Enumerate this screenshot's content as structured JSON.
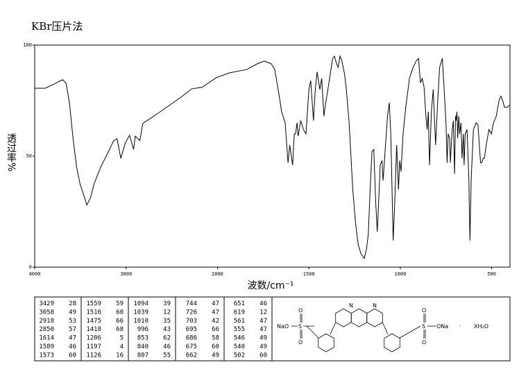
{
  "chart_data": {
    "type": "line",
    "title": "KBr压片法",
    "xlabel": "波数/cm⁻¹",
    "ylabel": "透过率%",
    "xlim": [
      4000,
      400
    ],
    "xticks": [
      4000,
      3000,
      2000,
      1500,
      1000,
      500
    ],
    "ylim": [
      0,
      100
    ],
    "yticks": [
      0,
      50,
      100
    ],
    "color": "#000000",
    "x": [
      4000,
      3885,
      3771,
      3695,
      3656,
      3618,
      3580,
      3542,
      3504,
      3466,
      3429,
      3389,
      3351,
      3275,
      3198,
      3137,
      3099,
      3058,
      3008,
      2962,
      2918,
      2900,
      2850,
      2817,
      2626,
      2397,
      2282,
      2168,
      2015,
      1935,
      1840,
      1782,
      1744,
      1706,
      1687,
      1668,
      1649,
      1630,
      1614,
      1605,
      1589,
      1580,
      1573,
      1565,
      1559,
      1545,
      1530,
      1516,
      1500,
      1490,
      1475,
      1465,
      1455,
      1440,
      1430,
      1418,
      1410,
      1400,
      1385,
      1370,
      1360,
      1350,
      1340,
      1330,
      1320,
      1305,
      1295,
      1280,
      1270,
      1260,
      1245,
      1230,
      1215,
      1206,
      1197,
      1185,
      1175,
      1165,
      1155,
      1145,
      1135,
      1126,
      1118,
      1110,
      1100,
      1094,
      1085,
      1070,
      1060,
      1052,
      1039,
      1030,
      1020,
      1010,
      1003,
      996,
      985,
      970,
      950,
      930,
      912,
      900,
      890,
      880,
      870,
      860,
      853,
      847,
      840,
      830,
      820,
      807,
      795,
      785,
      770,
      760,
      750,
      744,
      738,
      730,
      726,
      718,
      710,
      703,
      698,
      695,
      690,
      686,
      680,
      675,
      668,
      662,
      655,
      651,
      645,
      635,
      625,
      619,
      612,
      600,
      585,
      575,
      561,
      555,
      546,
      540,
      530,
      515,
      502,
      490,
      475,
      460,
      450,
      440,
      430,
      415,
      400
    ],
    "values": [
      80.6,
      80.6,
      82.8,
      84.4,
      82.8,
      73.4,
      57.8,
      45.3,
      37.5,
      32.8,
      28,
      31.3,
      37.5,
      45.3,
      51.6,
      56.9,
      57.8,
      49,
      56,
      59.4,
      53,
      59,
      57,
      64.7,
      70,
      76.6,
      80.3,
      81,
      85.3,
      87.5,
      89,
      91.6,
      92.8,
      91.6,
      89,
      80,
      70,
      65,
      47,
      55,
      46,
      60,
      60,
      65,
      59,
      66,
      62,
      60,
      80,
      84,
      66,
      80,
      88,
      80,
      85,
      68,
      73,
      78,
      86,
      94,
      95,
      92,
      90,
      95,
      93,
      87,
      80,
      65,
      50,
      35,
      20,
      10,
      6,
      5,
      4,
      8,
      15,
      35,
      52,
      53,
      30,
      16,
      30,
      46,
      48,
      39,
      50,
      68,
      74,
      60,
      12,
      30,
      55,
      35,
      48,
      43,
      60,
      72,
      85,
      90,
      93,
      94,
      83,
      85,
      81,
      68,
      62,
      70,
      46,
      70,
      80,
      55,
      75,
      90,
      94,
      80,
      65,
      47,
      60,
      58,
      47,
      60,
      66,
      42,
      68,
      66,
      70,
      58,
      68,
      60,
      65,
      49,
      60,
      46,
      60,
      62,
      40,
      12,
      40,
      62,
      65,
      64,
      47,
      47,
      49,
      49,
      55,
      62,
      60,
      65,
      68,
      75,
      77,
      75,
      72,
      72,
      73
    ]
  },
  "peak_table": {
    "rows": [
      [
        "3429",
        "28",
        "1559",
        "59",
        "1094",
        "39",
        "744",
        "47",
        "651",
        "46"
      ],
      [
        "3058",
        "49",
        "1516",
        "60",
        "1039",
        "12",
        "726",
        "47",
        "619",
        "12"
      ],
      [
        "2918",
        "53",
        "1475",
        "66",
        "1010",
        "35",
        "703",
        "42",
        "561",
        "47"
      ],
      [
        "2850",
        "57",
        "1418",
        "68",
        "996",
        "43",
        "695",
        "66",
        "555",
        "47"
      ],
      [
        "1614",
        "47",
        "1206",
        "5",
        "853",
        "62",
        "686",
        "58",
        "546",
        "49"
      ],
      [
        "1589",
        "46",
        "1197",
        "4",
        "840",
        "46",
        "675",
        "60",
        "540",
        "49"
      ],
      [
        "1573",
        "60",
        "1126",
        "16",
        "807",
        "55",
        "662",
        "49",
        "502",
        "60"
      ]
    ]
  },
  "structure": {
    "labels": [
      "NaO",
      "S",
      "O",
      "O",
      "N",
      "N",
      "S",
      "O",
      "O",
      "ONa",
      "·",
      "XH₂O"
    ]
  }
}
